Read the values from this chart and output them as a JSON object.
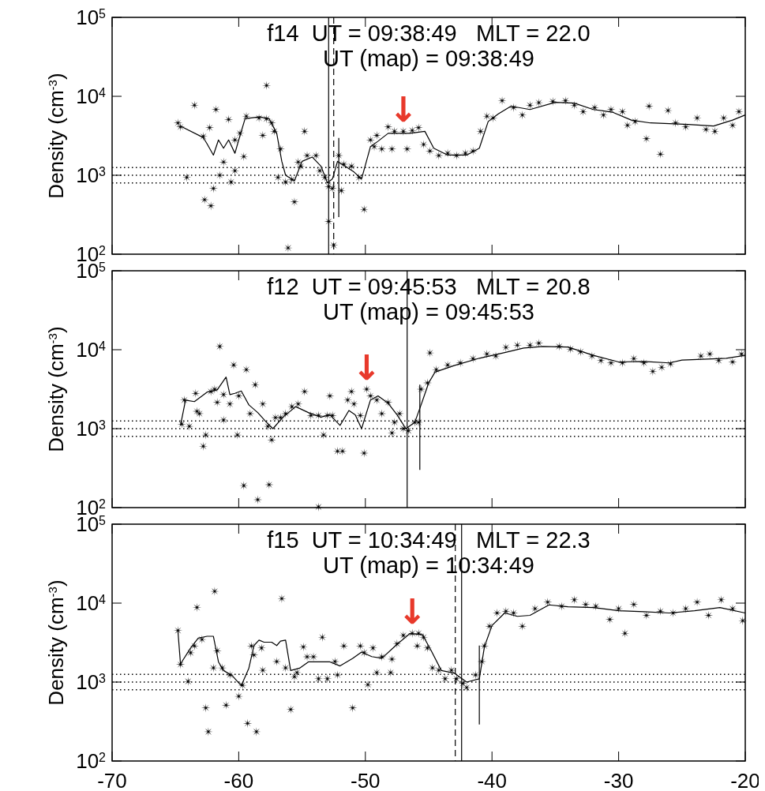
{
  "chart_data": [
    {
      "type": "scatter",
      "title": "f14  UT = 09:38:49   MLT = 22.0",
      "subtitle": "UT (map) = 09:38:49",
      "ylabel": "Density (cm$^{-3}$)",
      "log": "y",
      "xlim": [
        -70,
        -20
      ],
      "xticks": [
        -70,
        -60,
        -50,
        -40,
        -30,
        -20
      ],
      "ylim": [
        100,
        100000
      ],
      "yticks": [
        {
          "value": 100,
          "label": "10$^{2}$"
        },
        {
          "value": 1000,
          "label": "10$^{3}$"
        },
        {
          "value": 10000,
          "label": "10$^{4}$"
        },
        {
          "value": 100000,
          "label": "10$^{5}$"
        }
      ],
      "tick_labels": "y",
      "grid": false,
      "series": [
        {
          "marker": "star",
          "color": "#000000",
          "x": [
            -64.8,
            -64.6,
            -64.1,
            -63.5,
            -62.8,
            -62.7,
            -62.3,
            -62.2,
            -61.8,
            -62.0,
            -61.5,
            -61.2,
            -60.8,
            -60.6,
            -60.3,
            -60.3,
            -59.9,
            -59.6,
            -59.4,
            -58.4,
            -57.8,
            -57.8,
            -58.1,
            -57.4,
            -57.2,
            -56.7,
            -56.9,
            -56.3,
            -55.8,
            -55.6,
            -56.1,
            -55.3,
            -55.1,
            -54.8,
            -54.6,
            -53.9,
            -53.6,
            -53.2,
            -52.9,
            -52.9,
            -52.6,
            -52.5,
            -52.1,
            -51.9,
            -51.7,
            -51.1,
            -50.5,
            -50.1,
            -49.6,
            -49.3,
            -49.1,
            -48.7,
            -48.2,
            -47.9,
            -47.7,
            -47.0,
            -46.7,
            -46.3,
            -45.8,
            -45.4,
            -44.9,
            -44.2,
            -43.5,
            -42.8,
            -42.1,
            -41.5,
            -40.9,
            -40.4,
            -39.9,
            -39.2,
            -38.3,
            -37.6,
            -37.0,
            -36.3,
            -35.2,
            -34.2,
            -33.5,
            -32.8,
            -31.9,
            -31.2,
            -30.6,
            -29.7,
            -29.3,
            -28.7,
            -27.6,
            -27.8,
            -26.7,
            -26.1,
            -25.5,
            -24.7,
            -23.8,
            -23.1,
            -22.4,
            -21.7,
            -21.0,
            -20.5
          ],
          "values": [
            4600,
            4100,
            940,
            7700,
            3100,
            490,
            4000,
            410,
            6800,
            680,
            1000,
            1470,
            5100,
            820,
            1140,
            2800,
            3400,
            1730,
            5600,
            5300,
            13700,
            5200,
            3200,
            4600,
            3600,
            2150,
            940,
            820,
            880,
            460,
            120,
            1470,
            1300,
            3600,
            1780,
            1780,
            1140,
            940,
            720,
            260,
            680,
            130,
            1780,
            640,
            1380,
            1300,
            940,
            370,
            2800,
            2300,
            3200,
            2150,
            4100,
            2150,
            3600,
            3600,
            2150,
            3700,
            4000,
            2450,
            2030,
            1780,
            1900,
            1780,
            1900,
            2030,
            3600,
            5600,
            5300,
            8800,
            7200,
            5800,
            7700,
            8300,
            8600,
            8800,
            7700,
            6400,
            7200,
            5800,
            6800,
            6400,
            4300,
            4800,
            7500,
            2900,
            1850,
            6600,
            4600,
            4100,
            5300,
            3800,
            3600,
            5300,
            4300,
            6400
          ]
        },
        {
          "type": "line",
          "line_style": "solid",
          "color": "#000000",
          "x": [
            -64.6,
            -62.8,
            -62.5,
            -62.0,
            -61.6,
            -61.2,
            -60.8,
            -60.3,
            -60.0,
            -59.5,
            -58.3,
            -57.6,
            -57.0,
            -56.6,
            -56.3,
            -55.6,
            -55.0,
            -54.2,
            -53.5,
            -53.0,
            -52.6,
            -52.2,
            -51.6,
            -50.9,
            -50.3,
            -49.6,
            -49.0,
            -48.2,
            -46.5,
            -45.3,
            -44.6,
            -43.5,
            -42.0,
            -41.0,
            -40.3,
            -39.5,
            -38.5,
            -37.0,
            -35.0,
            -33.5,
            -32.0,
            -30.5,
            -29.0,
            -27.5,
            -26.0,
            -24.5,
            -22.5,
            -21.0,
            -20.0
          ],
          "values": [
            4200,
            3000,
            2500,
            1800,
            2800,
            2200,
            2800,
            1900,
            2800,
            5200,
            5500,
            5200,
            3400,
            1500,
            1000,
            850,
            1500,
            1700,
            1300,
            800,
            900,
            1500,
            1300,
            1100,
            900,
            2300,
            2700,
            3400,
            3400,
            3600,
            2200,
            1800,
            1800,
            2200,
            4800,
            6000,
            7500,
            6800,
            8400,
            8200,
            6800,
            6300,
            5000,
            4600,
            4500,
            4400,
            4200,
            5000,
            5800
          ]
        },
        {
          "type": "line",
          "line_style": "solid",
          "color": "#000000",
          "x": [
            -52.1,
            -52.1
          ],
          "values": [
            295,
            2960
          ]
        }
      ],
      "ref_lines": [
        {
          "axis": "y",
          "value": 1250,
          "line_style": "dotted"
        },
        {
          "axis": "y",
          "value": 1000,
          "line_style": "dotted"
        },
        {
          "axis": "y",
          "value": 800,
          "line_style": "dotted"
        },
        {
          "axis": "x",
          "value": -52.9,
          "line_style": "solid"
        },
        {
          "axis": "x",
          "value": -52.5,
          "line_style": "dashed"
        }
      ],
      "annotations": [
        {
          "text": "↓",
          "x": -47.0,
          "y": 3600
        }
      ]
    },
    {
      "type": "scatter",
      "title": "f12  UT = 09:45:53   MLT = 20.8",
      "subtitle": "UT (map) = 09:45:53",
      "ylabel": "Density (cm$^{-3}$)",
      "log": "y",
      "xlim": [
        -70,
        -20
      ],
      "xticks": [
        -70,
        -60,
        -50,
        -40,
        -30,
        -20
      ],
      "ylim": [
        100,
        100000
      ],
      "yticks": [
        {
          "value": 100,
          "label": "10$^{2}$"
        },
        {
          "value": 1000,
          "label": "10$^{3}$"
        },
        {
          "value": 10000,
          "label": "10$^{4}$"
        },
        {
          "value": 100000,
          "label": "10$^{5}$"
        }
      ],
      "tick_labels": "y",
      "grid": false,
      "series": [
        {
          "marker": "star",
          "color": "#000000",
          "x": [
            -64.5,
            -64.3,
            -63.9,
            -63.4,
            -63.3,
            -63.1,
            -62.8,
            -62.6,
            -62.2,
            -61.9,
            -61.7,
            -61.5,
            -61.2,
            -61.2,
            -60.7,
            -60.4,
            -60.1,
            -60.0,
            -59.6,
            -59.4,
            -59.1,
            -58.7,
            -58.5,
            -58.1,
            -57.7,
            -57.6,
            -57.4,
            -57.1,
            -56.7,
            -56.3,
            -55.8,
            -55.3,
            -54.8,
            -54.3,
            -53.7,
            -53.7,
            -53.3,
            -53.0,
            -52.8,
            -52.6,
            -52.2,
            -51.8,
            -51.4,
            -51.1,
            -50.9,
            -50.4,
            -50.1,
            -49.9,
            -49.6,
            -49.1,
            -48.7,
            -48.2,
            -47.9,
            -47.7,
            -47.3,
            -47.0,
            -46.6,
            -46.1,
            -45.8,
            -45.6,
            -45.1,
            -44.9,
            -44.4,
            -43.5,
            -42.5,
            -41.5,
            -40.4,
            -39.7,
            -38.9,
            -38.0,
            -37.0,
            -36.3,
            -34.7,
            -33.8,
            -33.0,
            -32.1,
            -31.4,
            -30.6,
            -29.7,
            -28.8,
            -28.0,
            -27.3,
            -26.6,
            -25.9,
            -23.5,
            -22.8,
            -22.1,
            -21.0,
            -20.3
          ],
          "values": [
            1140,
            2300,
            1070,
            2800,
            1660,
            1550,
            600,
            830,
            2950,
            3160,
            2150,
            11000,
            2700,
            1290,
            2050,
            6400,
            830,
            2600,
            190,
            5600,
            1550,
            3600,
            126,
            2050,
            1070,
            195,
            720,
            1380,
            1380,
            1550,
            1900,
            2050,
            2950,
            1470,
            102,
            1470,
            830,
            1470,
            2600,
            1470,
            520,
            520,
            2300,
            2950,
            2050,
            1470,
            490,
            3160,
            2600,
            2300,
            1550,
            2150,
            880,
            1200,
            1550,
            1000,
            940,
            1200,
            1200,
            3160,
            3800,
            9100,
            5600,
            6400,
            6800,
            7700,
            8800,
            8300,
            10700,
            11400,
            11400,
            12100,
            11000,
            10200,
            9400,
            8300,
            7300,
            6800,
            6800,
            7700,
            6800,
            5300,
            6000,
            6600,
            8300,
            8800,
            7300,
            7000,
            8800
          ]
        },
        {
          "type": "line",
          "line_style": "solid",
          "color": "#000000",
          "x": [
            -64.6,
            -64.2,
            -63.5,
            -62.5,
            -61.7,
            -61.0,
            -60.7,
            -60.3,
            -59.8,
            -59.2,
            -58.5,
            -57.8,
            -57.3,
            -56.5,
            -55.5,
            -54.5,
            -53.5,
            -52.8,
            -52.0,
            -51.3,
            -50.8,
            -50.3,
            -49.6,
            -49.0,
            -48.2,
            -47.5,
            -46.8,
            -46.1,
            -45.6,
            -45.0,
            -44.5,
            -43.0,
            -41.0,
            -39.0,
            -37.5,
            -36.0,
            -34.0,
            -32.0,
            -30.0,
            -28.0,
            -26.0,
            -25.0,
            -23.0,
            -21.5,
            -20.0
          ],
          "values": [
            1100,
            2300,
            2200,
            2900,
            3100,
            4500,
            2700,
            2800,
            3000,
            2000,
            1600,
            1200,
            1000,
            1400,
            1900,
            1600,
            1400,
            1500,
            1100,
            1700,
            1500,
            1000,
            2300,
            2600,
            2100,
            1500,
            1000,
            1200,
            2000,
            3800,
            5200,
            6300,
            7800,
            9200,
            10500,
            11000,
            10800,
            8500,
            7000,
            7100,
            6800,
            7400,
            7600,
            7800,
            8500
          ]
        },
        {
          "type": "line",
          "line_style": "solid",
          "color": "#000000",
          "x": [
            -45.7,
            -45.7
          ],
          "values": [
            300,
            3600
          ]
        }
      ],
      "ref_lines": [
        {
          "axis": "y",
          "value": 1250,
          "line_style": "dotted"
        },
        {
          "axis": "y",
          "value": 1000,
          "line_style": "dotted"
        },
        {
          "axis": "y",
          "value": 800,
          "line_style": "dotted"
        },
        {
          "axis": "x",
          "value": -46.7,
          "line_style": "solid"
        }
      ],
      "annotations": [
        {
          "text": "↓",
          "x": -49.9,
          "y": 3160
        }
      ]
    },
    {
      "type": "scatter",
      "title": "f15  UT = 10:34:49   MLT = 22.3",
      "subtitle": "UT (map) = 10:34:49",
      "ylabel": "Density (cm$^{-3}$)",
      "log": "y",
      "xlim": [
        -70,
        -20
      ],
      "xticks": [
        -70,
        -60,
        -50,
        -40,
        -30,
        -20
      ],
      "ylim": [
        100,
        100000
      ],
      "yticks": [
        {
          "value": 100,
          "label": "10$^{2}$"
        },
        {
          "value": 1000,
          "label": "10$^{3}$"
        },
        {
          "value": 10000,
          "label": "10$^{4}$"
        },
        {
          "value": 100000,
          "label": "10$^{5}$"
        }
      ],
      "grid": false,
      "series": [
        {
          "marker": "star",
          "color": "#000000",
          "x": [
            -64.8,
            -64.6,
            -64.0,
            -63.8,
            -63.5,
            -63.3,
            -62.9,
            -62.6,
            -62.4,
            -62.0,
            -61.9,
            -61.7,
            -61.3,
            -61.0,
            -60.7,
            -60.0,
            -59.7,
            -59.3,
            -59.0,
            -58.8,
            -58.6,
            -58.2,
            -58.1,
            -57.0,
            -56.6,
            -56.3,
            -55.9,
            -55.6,
            -55.4,
            -54.9,
            -54.6,
            -54.1,
            -53.7,
            -53.4,
            -53.0,
            -52.4,
            -52.2,
            -51.7,
            -51.0,
            -50.4,
            -50.1,
            -49.8,
            -49.4,
            -49.1,
            -48.7,
            -48.0,
            -47.9,
            -47.5,
            -47.0,
            -46.3,
            -45.8,
            -45.4,
            -45.9,
            -45.1,
            -44.7,
            -44.2,
            -43.7,
            -43.2,
            -42.8,
            -42.3,
            -42.0,
            -41.3,
            -40.8,
            -40.6,
            -40.2,
            -39.6,
            -38.9,
            -38.3,
            -37.6,
            -36.6,
            -35.6,
            -34.5,
            -33.5,
            -32.6,
            -31.8,
            -30.7,
            -30.0,
            -29.5,
            -28.8,
            -27.8,
            -26.7,
            -25.7,
            -24.7,
            -23.8,
            -22.9,
            -21.9,
            -21.0,
            -20.2
          ],
          "values": [
            4500,
            1670,
            1020,
            2350,
            2870,
            8800,
            3460,
            470,
            235,
            1510,
            14100,
            2500,
            1510,
            510,
            1230,
            660,
            910,
            300,
            2870,
            2200,
            235,
            2700,
            1410,
            1820,
            11400,
            1510,
            450,
            1170,
            1320,
            2780,
            2090,
            2090,
            1100,
            3700,
            1100,
            1820,
            1230,
            2870,
            470,
            2870,
            2350,
            930,
            2700,
            1320,
            2090,
            1320,
            1950,
            3050,
            3900,
            4150,
            4150,
            3700,
            2870,
            2700,
            1510,
            1410,
            1100,
            1410,
            1100,
            960,
            850,
            1230,
            1820,
            2870,
            5100,
            7500,
            7900,
            7500,
            5100,
            8500,
            10300,
            9100,
            11000,
            9600,
            9100,
            6200,
            8500,
            4150,
            9600,
            7000,
            7900,
            7500,
            8500,
            10300,
            7000,
            11000,
            8500,
            6000
          ]
        },
        {
          "type": "line",
          "line_style": "solid",
          "color": "#000000",
          "x": [
            -64.8,
            -64.6,
            -63.8,
            -63.2,
            -62.5,
            -62.0,
            -61.6,
            -61.2,
            -60.5,
            -59.8,
            -59.2,
            -58.8,
            -58.4,
            -58.0,
            -57.4,
            -57.0,
            -56.7,
            -56.3,
            -55.9,
            -55.2,
            -54.5,
            -53.8,
            -52.8,
            -52.0,
            -51.0,
            -50.3,
            -49.5,
            -48.7,
            -47.5,
            -46.5,
            -45.5,
            -44.8,
            -44.0,
            -43.0,
            -42.0,
            -41.0,
            -40.6,
            -40.0,
            -39.0,
            -38.0,
            -37.0,
            -35.5,
            -34.0,
            -32.0,
            -30.0,
            -28.0,
            -26.0,
            -24.0,
            -22.0,
            -20.0
          ],
          "values": [
            4400,
            1700,
            2700,
            3600,
            3800,
            3800,
            1800,
            1400,
            1200,
            900,
            1500,
            2900,
            3400,
            3200,
            3200,
            2900,
            3300,
            3400,
            1400,
            1500,
            1800,
            1800,
            1800,
            1600,
            2000,
            2400,
            2100,
            2000,
            3000,
            4100,
            4000,
            2500,
            1400,
            1300,
            1000,
            1100,
            2800,
            5200,
            7500,
            6800,
            7000,
            9500,
            9000,
            8800,
            8000,
            7800,
            7500,
            8000,
            8800,
            7500
          ]
        },
        {
          "type": "line",
          "line_style": "solid",
          "color": "#000000",
          "x": [
            -41.0,
            -41.0
          ],
          "values": [
            290,
            2900
          ]
        }
      ],
      "ref_lines": [
        {
          "axis": "y",
          "value": 1250,
          "line_style": "dotted"
        },
        {
          "axis": "y",
          "value": 1000,
          "line_style": "dotted"
        },
        {
          "axis": "y",
          "value": 800,
          "line_style": "dotted"
        },
        {
          "axis": "x",
          "value": -42.9,
          "line_style": "dashed"
        },
        {
          "axis": "x",
          "value": -42.4,
          "line_style": "solid"
        }
      ],
      "annotations": [
        {
          "text": "↓",
          "x": -46.3,
          "y": 4150
        }
      ]
    }
  ]
}
